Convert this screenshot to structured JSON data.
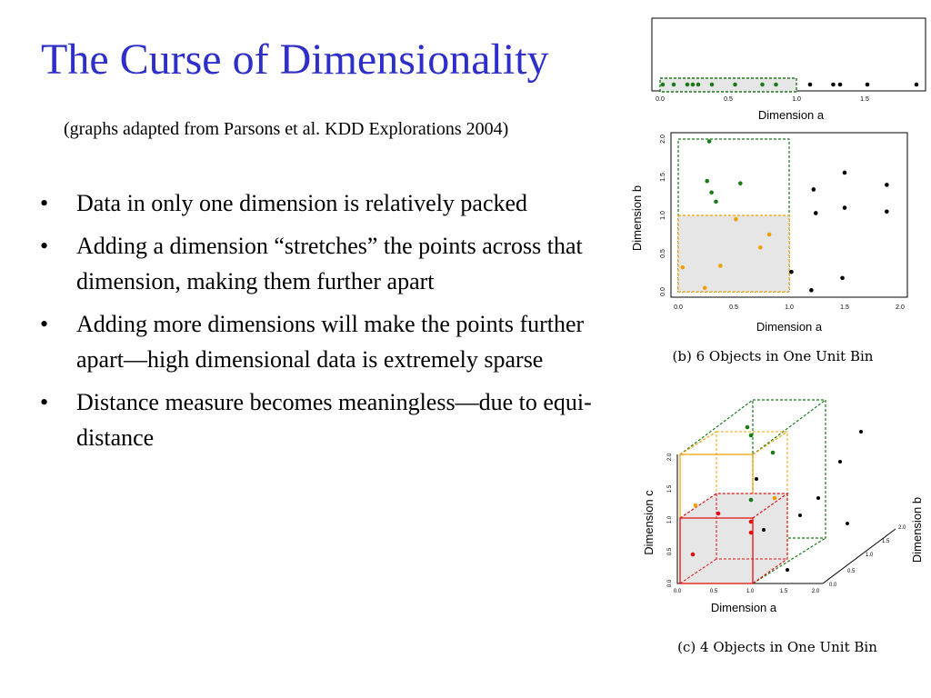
{
  "slide": {
    "title": "The Curse of Dimensionality",
    "subtitle": "(graphs adapted from Parsons et al. KDD Explorations 2004)",
    "bullets": [
      "Data in only one dimension is relatively packed",
      "Adding a dimension “stretches” the  points across that dimension, making them further apart",
      "Adding more dimensions will make the points further apart—high dimensional data is extremely sparse",
      "Distance measure becomes meaningless—due to equi-distance"
    ],
    "bullet_glyph": "•"
  },
  "figures": {
    "colors": {
      "green": "#1a7a1a",
      "orange": "#f0a000",
      "red": "#e01010",
      "black": "#000000",
      "bin_fill": "#e6e6e6"
    },
    "fig_a": {
      "xlabel": "Dimension a",
      "xticks": [
        "0.0",
        "0.5",
        "1.0",
        "1.5"
      ],
      "xlim": [
        0,
        2
      ],
      "points": [
        {
          "a": 0.02,
          "color": "green"
        },
        {
          "a": 0.1,
          "color": "green"
        },
        {
          "a": 0.2,
          "color": "green"
        },
        {
          "a": 0.24,
          "color": "green"
        },
        {
          "a": 0.28,
          "color": "green"
        },
        {
          "a": 0.38,
          "color": "green"
        },
        {
          "a": 0.55,
          "color": "green"
        },
        {
          "a": 0.75,
          "color": "green"
        },
        {
          "a": 0.85,
          "color": "green"
        },
        {
          "a": 1.1,
          "color": "black"
        },
        {
          "a": 1.27,
          "color": "black"
        },
        {
          "a": 1.32,
          "color": "black"
        },
        {
          "a": 1.52,
          "color": "black"
        },
        {
          "a": 1.88,
          "color": "black"
        }
      ]
    },
    "fig_b": {
      "xlabel": "Dimension a",
      "ylabel": "Dimension b",
      "xticks": [
        "0.0",
        "0.5",
        "1.0",
        "1.5",
        "2.0"
      ],
      "yticks": [
        "0.0",
        "0.5",
        "1.0",
        "1.5",
        "2.0"
      ],
      "xlim": [
        0,
        2
      ],
      "ylim": [
        0,
        2
      ],
      "caption": "(b) 6 Objects in One Unit Bin",
      "points": [
        {
          "a": 0.28,
          "b": 1.97,
          "color": "green"
        },
        {
          "a": 0.26,
          "b": 1.45,
          "color": "green"
        },
        {
          "a": 0.3,
          "b": 1.3,
          "color": "green"
        },
        {
          "a": 0.34,
          "b": 1.18,
          "color": "green"
        },
        {
          "a": 0.56,
          "b": 1.42,
          "color": "green"
        },
        {
          "a": 0.52,
          "b": 0.95,
          "color": "orange"
        },
        {
          "a": 0.82,
          "b": 0.75,
          "color": "orange"
        },
        {
          "a": 0.74,
          "b": 0.58,
          "color": "orange"
        },
        {
          "a": 0.04,
          "b": 0.32,
          "color": "orange"
        },
        {
          "a": 0.38,
          "b": 0.34,
          "color": "orange"
        },
        {
          "a": 0.24,
          "b": 0.05,
          "color": "orange"
        },
        {
          "a": 1.5,
          "b": 1.56,
          "color": "black"
        },
        {
          "a": 1.22,
          "b": 1.34,
          "color": "black"
        },
        {
          "a": 1.88,
          "b": 1.4,
          "color": "black"
        },
        {
          "a": 1.24,
          "b": 1.03,
          "color": "black"
        },
        {
          "a": 1.5,
          "b": 1.1,
          "color": "black"
        },
        {
          "a": 1.88,
          "b": 1.05,
          "color": "black"
        },
        {
          "a": 1.02,
          "b": 0.26,
          "color": "black"
        },
        {
          "a": 1.48,
          "b": 0.18,
          "color": "black"
        },
        {
          "a": 1.2,
          "b": 0.02,
          "color": "black"
        }
      ]
    },
    "fig_c": {
      "xlabel": "Dimension a",
      "ylabel": "Dimension c",
      "zlabel": "Dimension b",
      "xticks": [
        "0.0",
        "0.5",
        "1.0",
        "1.5",
        "2.0"
      ],
      "yticks": [
        "0.0",
        "0.5",
        "1.0",
        "1.5",
        "2.0"
      ],
      "zticks": [
        "0.0",
        "0.5",
        "1.0",
        "1.5",
        "2.0"
      ],
      "caption": "(c) 4 Objects in One Unit Bin"
    }
  }
}
